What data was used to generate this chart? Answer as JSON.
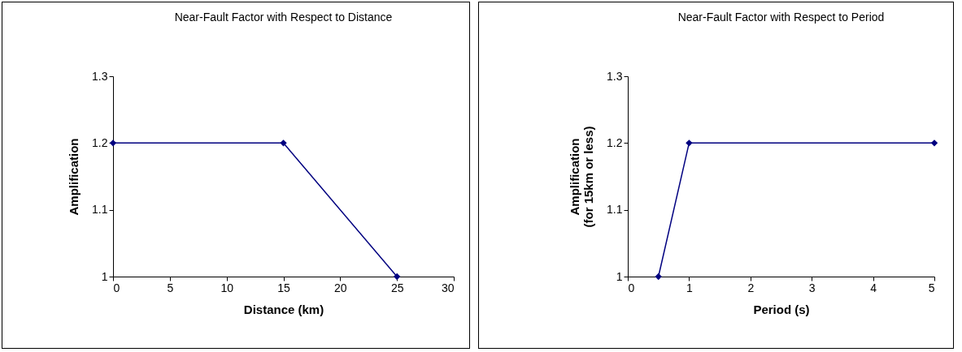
{
  "chart_data": [
    {
      "type": "line",
      "title": "Near-Fault Factor with Respect to Distance",
      "xlabel": "Distance (km)",
      "ylabel": "Amplification",
      "x": [
        0,
        15,
        25
      ],
      "series": [
        {
          "color": "#000080",
          "values": [
            1.2,
            1.2,
            1
          ]
        }
      ],
      "xlim": [
        0,
        30
      ],
      "xticks": [
        0,
        5,
        10,
        15,
        20,
        25,
        30
      ],
      "ylim": [
        1,
        1.3
      ],
      "yticks": [
        1,
        1.1,
        1.2,
        1.3
      ],
      "marker": "diamond"
    },
    {
      "type": "line",
      "title": "Near-Fault Factor with Respect to Period",
      "xlabel": "Period (s)",
      "ylabel": "Amplification\n(for 15km or less)",
      "x": [
        0.5,
        1,
        5
      ],
      "series": [
        {
          "color": "#000080",
          "values": [
            1,
            1.2,
            1.2
          ]
        }
      ],
      "xlim": [
        0,
        5
      ],
      "xticks": [
        0,
        1,
        2,
        3,
        4,
        5
      ],
      "ylim": [
        1,
        1.3
      ],
      "yticks": [
        1,
        1.1,
        1.2,
        1.3
      ],
      "marker": "diamond"
    }
  ]
}
